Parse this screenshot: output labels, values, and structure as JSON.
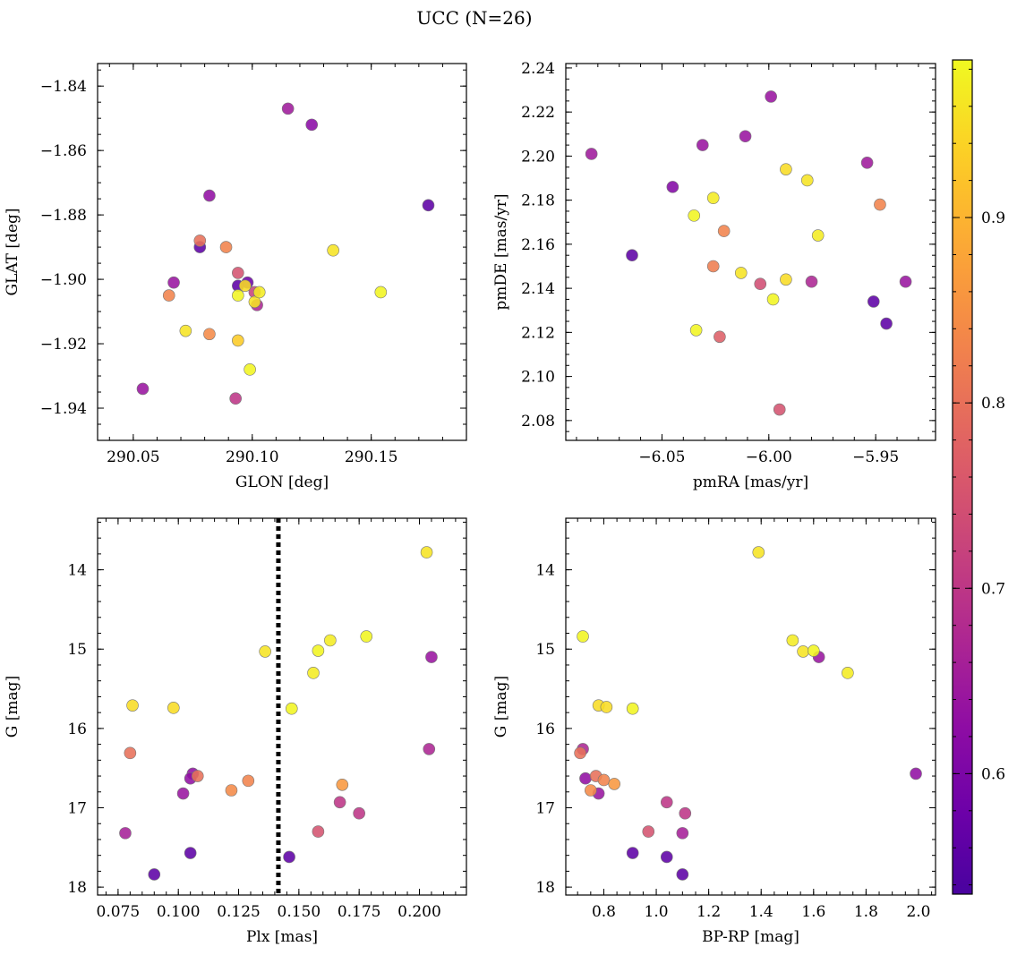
{
  "title": "UCC (N=26)",
  "colorbar": {
    "range": [
      0.535,
      0.985
    ],
    "ticks": [
      0.6,
      0.7,
      0.8,
      0.9
    ],
    "tick_labels": [
      "0.6",
      "0.7",
      "0.8",
      "0.9"
    ],
    "colormap": "plasma"
  },
  "chart_data": [
    {
      "type": "scatter",
      "id": "glon-glat",
      "xlabel": "GLON [deg]",
      "ylabel": "GLAT [deg]",
      "xlim": [
        290.035,
        290.19
      ],
      "ylim": [
        -1.95,
        -1.833
      ],
      "xticks": [
        290.05,
        290.1,
        290.15
      ],
      "xtick_labels": [
        "290.05",
        "290.10",
        "290.15"
      ],
      "yticks": [
        -1.84,
        -1.86,
        -1.88,
        -1.9,
        -1.92,
        -1.94
      ],
      "ytick_labels": [
        "−1.84",
        "−1.86",
        "−1.88",
        "−1.90",
        "−1.92",
        "−1.94"
      ],
      "x_minor_step": 0.01,
      "y_minor_step": 0.005,
      "y_inverted": false,
      "points": [
        {
          "x": 290.115,
          "y": -1.847,
          "c": 0.65
        },
        {
          "x": 290.125,
          "y": -1.852,
          "c": 0.62
        },
        {
          "x": 290.174,
          "y": -1.877,
          "c": 0.56
        },
        {
          "x": 290.082,
          "y": -1.874,
          "c": 0.63
        },
        {
          "x": 290.078,
          "y": -1.888,
          "c": 0.8
        },
        {
          "x": 290.078,
          "y": -1.89,
          "c": 0.56
        },
        {
          "x": 290.089,
          "y": -1.89,
          "c": 0.83
        },
        {
          "x": 290.134,
          "y": -1.891,
          "c": 0.96
        },
        {
          "x": 290.094,
          "y": -1.898,
          "c": 0.75
        },
        {
          "x": 290.067,
          "y": -1.901,
          "c": 0.64
        },
        {
          "x": 290.098,
          "y": -1.901,
          "c": 0.58
        },
        {
          "x": 290.094,
          "y": -1.902,
          "c": 0.56
        },
        {
          "x": 290.097,
          "y": -1.902,
          "c": 0.95
        },
        {
          "x": 290.101,
          "y": -1.904,
          "c": 0.72
        },
        {
          "x": 290.065,
          "y": -1.905,
          "c": 0.83
        },
        {
          "x": 290.103,
          "y": -1.904,
          "c": 0.97
        },
        {
          "x": 290.154,
          "y": -1.904,
          "c": 0.98
        },
        {
          "x": 290.094,
          "y": -1.905,
          "c": 0.98
        },
        {
          "x": 290.101,
          "y": -1.907,
          "c": 0.96
        },
        {
          "x": 290.102,
          "y": -1.908,
          "c": 0.67
        },
        {
          "x": 290.072,
          "y": -1.916,
          "c": 0.96
        },
        {
          "x": 290.082,
          "y": -1.917,
          "c": 0.84
        },
        {
          "x": 290.094,
          "y": -1.919,
          "c": 0.93
        },
        {
          "x": 290.099,
          "y": -1.928,
          "c": 0.98
        },
        {
          "x": 290.054,
          "y": -1.934,
          "c": 0.64
        },
        {
          "x": 290.093,
          "y": -1.937,
          "c": 0.7
        }
      ]
    },
    {
      "type": "scatter",
      "id": "pmra-pmde",
      "xlabel": "pmRA [mas/yr]",
      "ylabel": "pmDE [mas/yr]",
      "xlim": [
        -6.095,
        -5.922
      ],
      "ylim": [
        2.071,
        2.242
      ],
      "xticks": [
        -6.05,
        -6.0,
        -5.95
      ],
      "xtick_labels": [
        "−6.05",
        "−6.00",
        "−5.95"
      ],
      "yticks": [
        2.08,
        2.1,
        2.12,
        2.14,
        2.16,
        2.18,
        2.2,
        2.22,
        2.24
      ],
      "ytick_labels": [
        "2.08",
        "2.10",
        "2.12",
        "2.14",
        "2.16",
        "2.18",
        "2.20",
        "2.22",
        "2.24"
      ],
      "x_minor_step": 0.01,
      "y_minor_step": 0.005,
      "y_inverted": false,
      "points": [
        {
          "x": -5.999,
          "y": 2.227,
          "c": 0.64
        },
        {
          "x": -6.011,
          "y": 2.209,
          "c": 0.64
        },
        {
          "x": -6.031,
          "y": 2.205,
          "c": 0.64
        },
        {
          "x": -6.083,
          "y": 2.201,
          "c": 0.65
        },
        {
          "x": -5.954,
          "y": 2.197,
          "c": 0.65
        },
        {
          "x": -5.992,
          "y": 2.194,
          "c": 0.95
        },
        {
          "x": -5.982,
          "y": 2.189,
          "c": 0.96
        },
        {
          "x": -6.045,
          "y": 2.186,
          "c": 0.61
        },
        {
          "x": -6.026,
          "y": 2.181,
          "c": 0.97
        },
        {
          "x": -5.948,
          "y": 2.178,
          "c": 0.83
        },
        {
          "x": -6.035,
          "y": 2.173,
          "c": 0.98
        },
        {
          "x": -6.021,
          "y": 2.166,
          "c": 0.83
        },
        {
          "x": -5.977,
          "y": 2.164,
          "c": 0.97
        },
        {
          "x": -6.064,
          "y": 2.155,
          "c": 0.56
        },
        {
          "x": -6.026,
          "y": 2.15,
          "c": 0.82
        },
        {
          "x": -6.013,
          "y": 2.147,
          "c": 0.96
        },
        {
          "x": -5.992,
          "y": 2.144,
          "c": 0.95
        },
        {
          "x": -5.936,
          "y": 2.143,
          "c": 0.64
        },
        {
          "x": -5.98,
          "y": 2.143,
          "c": 0.67
        },
        {
          "x": -6.004,
          "y": 2.142,
          "c": 0.74
        },
        {
          "x": -5.998,
          "y": 2.135,
          "c": 0.98
        },
        {
          "x": -5.951,
          "y": 2.134,
          "c": 0.56
        },
        {
          "x": -5.945,
          "y": 2.124,
          "c": 0.56
        },
        {
          "x": -6.034,
          "y": 2.121,
          "c": 0.98
        },
        {
          "x": -6.023,
          "y": 2.118,
          "c": 0.77
        },
        {
          "x": -5.995,
          "y": 2.085,
          "c": 0.75
        }
      ]
    },
    {
      "type": "scatter",
      "id": "plx-g",
      "xlabel": "Plx [mas]",
      "ylabel": "G [mag]",
      "xlim": [
        0.0665,
        0.2195
      ],
      "ylim": [
        18.1,
        13.35
      ],
      "xticks": [
        0.075,
        0.1,
        0.125,
        0.15,
        0.175,
        0.2
      ],
      "xtick_labels": [
        "0.075",
        "0.100",
        "0.125",
        "0.150",
        "0.175",
        "0.200"
      ],
      "yticks": [
        14,
        15,
        16,
        17,
        18
      ],
      "ytick_labels": [
        "14",
        "15",
        "16",
        "17",
        "18"
      ],
      "x_minor_step": 0.005,
      "y_minor_step": 0.2,
      "y_inverted": true,
      "vline": {
        "x": 0.1415,
        "style": "dotted"
      },
      "points": [
        {
          "x": 0.203,
          "y": 13.78,
          "c": 0.96
        },
        {
          "x": 0.178,
          "y": 14.84,
          "c": 0.98
        },
        {
          "x": 0.163,
          "y": 14.89,
          "c": 0.97
        },
        {
          "x": 0.158,
          "y": 15.02,
          "c": 0.98
        },
        {
          "x": 0.136,
          "y": 15.03,
          "c": 0.96
        },
        {
          "x": 0.205,
          "y": 15.1,
          "c": 0.64
        },
        {
          "x": 0.156,
          "y": 15.3,
          "c": 0.97
        },
        {
          "x": 0.081,
          "y": 15.71,
          "c": 0.95
        },
        {
          "x": 0.098,
          "y": 15.74,
          "c": 0.95
        },
        {
          "x": 0.147,
          "y": 15.75,
          "c": 0.98
        },
        {
          "x": 0.204,
          "y": 16.26,
          "c": 0.67
        },
        {
          "x": 0.08,
          "y": 16.31,
          "c": 0.8
        },
        {
          "x": 0.106,
          "y": 16.57,
          "c": 0.63
        },
        {
          "x": 0.108,
          "y": 16.6,
          "c": 0.8
        },
        {
          "x": 0.105,
          "y": 16.63,
          "c": 0.63
        },
        {
          "x": 0.129,
          "y": 16.66,
          "c": 0.83
        },
        {
          "x": 0.168,
          "y": 16.71,
          "c": 0.86
        },
        {
          "x": 0.122,
          "y": 16.78,
          "c": 0.84
        },
        {
          "x": 0.102,
          "y": 16.82,
          "c": 0.64
        },
        {
          "x": 0.167,
          "y": 16.93,
          "c": 0.7
        },
        {
          "x": 0.175,
          "y": 17.07,
          "c": 0.7
        },
        {
          "x": 0.078,
          "y": 17.32,
          "c": 0.66
        },
        {
          "x": 0.158,
          "y": 17.3,
          "c": 0.75
        },
        {
          "x": 0.105,
          "y": 17.57,
          "c": 0.56
        },
        {
          "x": 0.146,
          "y": 17.62,
          "c": 0.56
        },
        {
          "x": 0.09,
          "y": 17.84,
          "c": 0.56
        }
      ]
    },
    {
      "type": "scatter",
      "id": "bprp-g",
      "xlabel": "BP-RP [mag]",
      "ylabel": "G [mag]",
      "xlim": [
        0.655,
        2.065
      ],
      "ylim": [
        18.1,
        13.35
      ],
      "xticks": [
        0.8,
        1.0,
        1.2,
        1.4,
        1.6,
        1.8,
        2.0
      ],
      "xtick_labels": [
        "0.8",
        "1.0",
        "1.2",
        "1.4",
        "1.6",
        "1.8",
        "2.0"
      ],
      "yticks": [
        14,
        15,
        16,
        17,
        18
      ],
      "ytick_labels": [
        "14",
        "15",
        "16",
        "17",
        "18"
      ],
      "x_minor_step": 0.05,
      "y_minor_step": 0.2,
      "y_inverted": true,
      "points": [
        {
          "x": 1.39,
          "y": 13.78,
          "c": 0.96
        },
        {
          "x": 0.72,
          "y": 14.84,
          "c": 0.98
        },
        {
          "x": 1.52,
          "y": 14.89,
          "c": 0.97
        },
        {
          "x": 1.56,
          "y": 15.03,
          "c": 0.96
        },
        {
          "x": 1.6,
          "y": 15.02,
          "c": 0.98
        },
        {
          "x": 1.62,
          "y": 15.1,
          "c": 0.64
        },
        {
          "x": 1.73,
          "y": 15.3,
          "c": 0.97
        },
        {
          "x": 0.78,
          "y": 15.71,
          "c": 0.95
        },
        {
          "x": 0.81,
          "y": 15.73,
          "c": 0.95
        },
        {
          "x": 0.91,
          "y": 15.75,
          "c": 0.98
        },
        {
          "x": 0.72,
          "y": 16.26,
          "c": 0.67
        },
        {
          "x": 0.71,
          "y": 16.31,
          "c": 0.8
        },
        {
          "x": 1.99,
          "y": 16.57,
          "c": 0.63
        },
        {
          "x": 0.73,
          "y": 16.63,
          "c": 0.63
        },
        {
          "x": 0.77,
          "y": 16.6,
          "c": 0.8
        },
        {
          "x": 0.8,
          "y": 16.65,
          "c": 0.83
        },
        {
          "x": 0.84,
          "y": 16.7,
          "c": 0.86
        },
        {
          "x": 0.75,
          "y": 16.78,
          "c": 0.84
        },
        {
          "x": 0.78,
          "y": 16.82,
          "c": 0.64
        },
        {
          "x": 1.04,
          "y": 16.93,
          "c": 0.7
        },
        {
          "x": 1.11,
          "y": 17.07,
          "c": 0.7
        },
        {
          "x": 0.97,
          "y": 17.3,
          "c": 0.75
        },
        {
          "x": 1.1,
          "y": 17.32,
          "c": 0.66
        },
        {
          "x": 0.91,
          "y": 17.57,
          "c": 0.56
        },
        {
          "x": 1.04,
          "y": 17.62,
          "c": 0.56
        },
        {
          "x": 1.1,
          "y": 17.84,
          "c": 0.56
        }
      ]
    }
  ]
}
